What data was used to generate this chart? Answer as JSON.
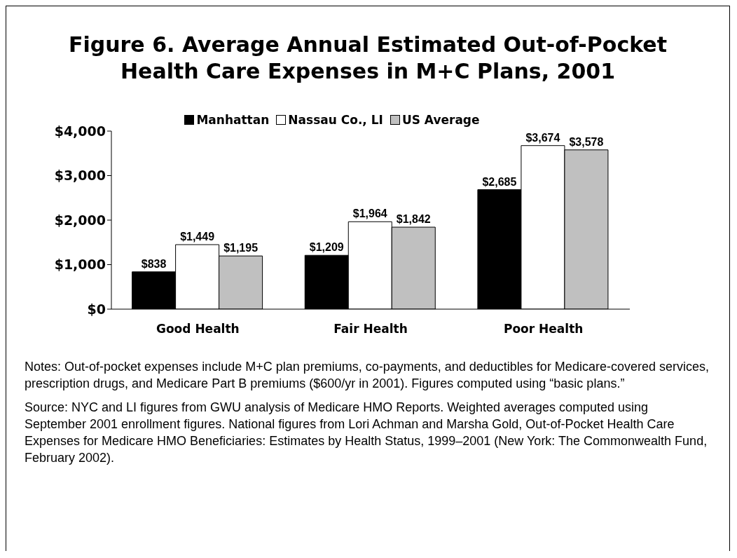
{
  "chart_data": {
    "type": "bar",
    "title": "Figure 6. Average Annual Estimated Out-of-Pocket Health Care Expenses in M+C Plans, 2001",
    "categories": [
      "Good Health",
      "Fair Health",
      "Poor Health"
    ],
    "series": [
      {
        "name": "Manhattan",
        "color": "#000000",
        "values": [
          838,
          1209,
          2685
        ],
        "value_labels": [
          "$838",
          "$1,209",
          "$2,685"
        ]
      },
      {
        "name": "Nassau Co., LI",
        "color": "#ffffff",
        "values": [
          1449,
          1964,
          3674
        ],
        "value_labels": [
          "$1,449",
          "$1,964",
          "$3,674"
        ]
      },
      {
        "name": "US Average",
        "color": "#c0c0c0",
        "values": [
          1195,
          1842,
          3578
        ],
        "value_labels": [
          "$1,195",
          "$1,842",
          "$3,578"
        ]
      }
    ],
    "ylim": [
      0,
      4000
    ],
    "yticks": [
      {
        "value": 0,
        "label": "$0"
      },
      {
        "value": 1000,
        "label": "$1,000"
      },
      {
        "value": 2000,
        "label": "$2,000"
      },
      {
        "value": 3000,
        "label": "$3,000"
      },
      {
        "value": 4000,
        "label": "$4,000"
      }
    ],
    "grid": false,
    "legend": "top",
    "annotations": [
      "Notes: Out-of-pocket expenses include M+C plan premiums, co-payments, and deductibles for Medicare-covered services, prescription drugs, and Medicare Part B premiums ($600/yr in 2001). Figures computed using “basic plans.”",
      "Source: NYC and LI figures from GWU analysis of Medicare HMO Reports. Weighted averages computed using September 2001 enrollment figures. National figures from Lori Achman and Marsha Gold, Out-of-Pocket Health Care Expenses for Medicare HMO Beneficiaries: Estimates by Health Status, 1999–2001 (New York: The Commonwealth Fund, February 2002)."
    ]
  }
}
